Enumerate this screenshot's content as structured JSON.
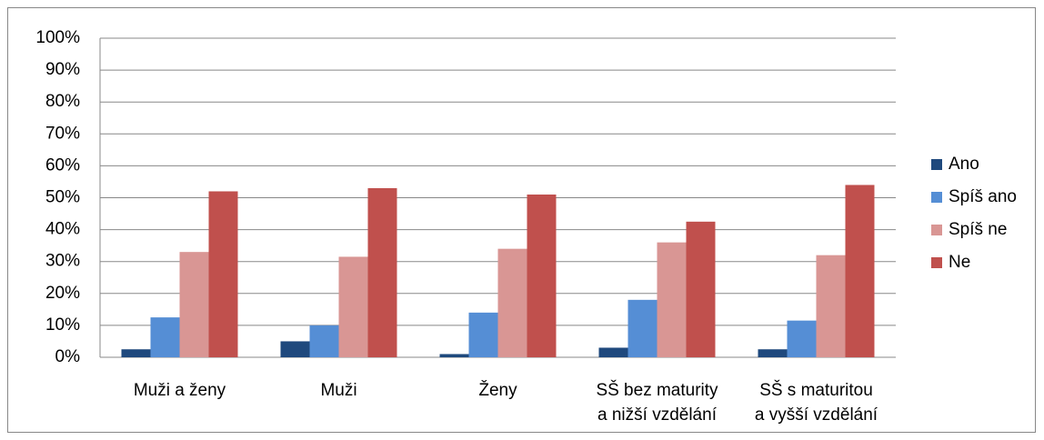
{
  "chart_data": {
    "type": "bar",
    "categories": [
      "Muži a ženy",
      "Muži",
      "Ženy",
      "SŠ bez maturity\na nižší vzdělání",
      "SŠ s maturitou\na vyšší vzdělání"
    ],
    "series": [
      {
        "name": "Ano",
        "color": "#1f497d",
        "values": [
          2.5,
          5,
          1,
          3,
          2.5
        ]
      },
      {
        "name": "Spíš ano",
        "color": "#558ed5",
        "values": [
          12.5,
          10,
          14,
          18,
          11.5
        ]
      },
      {
        "name": "Spíš ne",
        "color": "#d99694",
        "values": [
          33,
          31.5,
          34,
          36,
          32
        ]
      },
      {
        "name": "Ne",
        "color": "#c0504d",
        "values": [
          52,
          53,
          51,
          42.5,
          54
        ]
      }
    ],
    "ylim": [
      0,
      100
    ],
    "yticks": [
      {
        "value": 0,
        "label": "0%"
      },
      {
        "value": 10,
        "label": "10%"
      },
      {
        "value": 20,
        "label": "20%"
      },
      {
        "value": 30,
        "label": "30%"
      },
      {
        "value": 40,
        "label": "40%"
      },
      {
        "value": 50,
        "label": "50%"
      },
      {
        "value": 60,
        "label": "60%"
      },
      {
        "value": 70,
        "label": "70%"
      },
      {
        "value": 80,
        "label": "80%"
      },
      {
        "value": 90,
        "label": "90%"
      },
      {
        "value": 100,
        "label": "100%"
      }
    ],
    "grid": true,
    "legend": "right"
  }
}
